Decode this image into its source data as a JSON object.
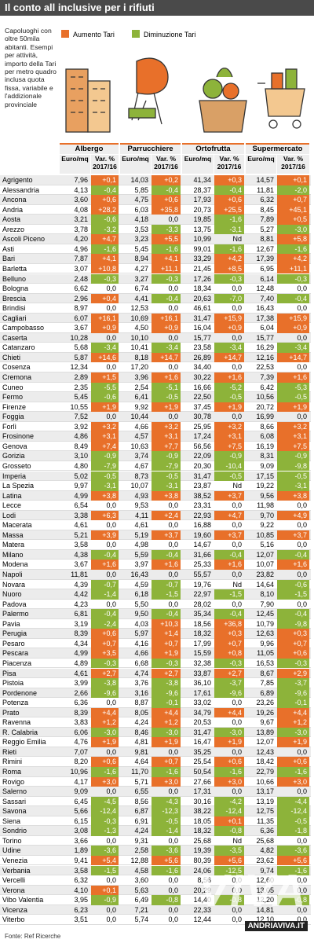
{
  "header": {
    "title": "Il conto all inclusive per i rifiuti",
    "intro": "Capoluoghi con oltre 50mila abitanti. Esempi per attività, importo della Tari per metro quadro inclusa quota fissa, variabile e l'addizionale provinciale",
    "legend": [
      "Aumento Tari",
      "Diminuzione Tari"
    ]
  },
  "table": {
    "groups": [
      "Albergo",
      "Parrucchiere",
      "Ortofrutta",
      "Supermercato"
    ],
    "subheaders": [
      "Euro/mq",
      "Var. %",
      "2017/16"
    ],
    "rows": [
      [
        "Agrigento",
        "7,96",
        "+0,1",
        "14,03",
        "+0,2",
        "41,34",
        "+0,3",
        "14,57",
        "+0,1"
      ],
      [
        "Alessandria",
        "4,13",
        "-0,4",
        "5,85",
        "-0,4",
        "28,37",
        "-0,4",
        "11,81",
        "-2,0"
      ],
      [
        "Ancona",
        "3,60",
        "+0,6",
        "4,75",
        "+0,6",
        "17,93",
        "+0,6",
        "6,32",
        "+0,7"
      ],
      [
        "Andria",
        "4,08",
        "+28,2",
        "6,03",
        "+35,8",
        "20,73",
        "+25,5",
        "8,45",
        "+45,1"
      ],
      [
        "Aosta",
        "3,21",
        "-0,6",
        "4,18",
        "0,0",
        "19,85",
        "-1,6",
        "7,89",
        "+0,5"
      ],
      [
        "Arezzo",
        "3,78",
        "-3,2",
        "3,53",
        "-3,3",
        "13,75",
        "-3,1",
        "5,27",
        "-3,0"
      ],
      [
        "Ascoli Piceno",
        "4,20",
        "+4,7",
        "3,23",
        "+5,5",
        "10,99",
        "Nd",
        "8,81",
        "+5,8"
      ],
      [
        "Asti",
        "4,96",
        "-1,6",
        "5,45",
        "-1,6",
        "99,01",
        "-1,6",
        "12,67",
        "-1,6"
      ],
      [
        "Bari",
        "7,87",
        "+4,1",
        "8,94",
        "+4,1",
        "33,29",
        "+4,2",
        "17,39",
        "+4,2"
      ],
      [
        "Barletta",
        "3,07",
        "+10,8",
        "4,27",
        "+11,1",
        "21,45",
        "+8,5",
        "6,95",
        "+11,1"
      ],
      [
        "Belluno",
        "2,48",
        "-0,3",
        "3,27",
        "-0,3",
        "17,26",
        "-0,3",
        "6,14",
        "-0,3"
      ],
      [
        "Bologna",
        "6,62",
        "0,0",
        "6,74",
        "0,0",
        "18,34",
        "0,0",
        "12,48",
        "0,0"
      ],
      [
        "Brescia",
        "2,96",
        "+0,4",
        "4,41",
        "-0,4",
        "20,63",
        "-7,0",
        "7,40",
        "-0,4"
      ],
      [
        "Brindisi",
        "8,97",
        "0,0",
        "12,53",
        "0,0",
        "46,61",
        "0,0",
        "16,43",
        "0,0"
      ],
      [
        "Cagliari",
        "6,07",
        "+16,1",
        "10,69",
        "+16,1",
        "31,47",
        "+15,9",
        "17,38",
        "+15,9"
      ],
      [
        "Campobasso",
        "3,67",
        "+0,9",
        "4,50",
        "+0,9",
        "16,04",
        "+0,9",
        "6,04",
        "+0,9"
      ],
      [
        "Caserta",
        "10,28",
        "0,0",
        "10,10",
        "0,0",
        "15,77",
        "0,0",
        "15,77",
        "0,0"
      ],
      [
        "Catanzaro",
        "5,68",
        "-3,4",
        "10,41",
        "-3,4",
        "23,58",
        "-3,4",
        "16,29",
        "-3,4"
      ],
      [
        "Chieti",
        "5,87",
        "+14,6",
        "8,18",
        "+14,7",
        "26,89",
        "+14,7",
        "12,16",
        "+14,7"
      ],
      [
        "Cosenza",
        "12,34",
        "0,0",
        "17,20",
        "0,0",
        "34,40",
        "0,0",
        "22,53",
        "0,0"
      ],
      [
        "Cremona",
        "2,89",
        "+1,5",
        "3,96",
        "+1,6",
        "30,22",
        "+1,6",
        "7,39",
        "+1,6"
      ],
      [
        "Cuneo",
        "2,35",
        "-5,5",
        "2,54",
        "-5,1",
        "16,66",
        "-5,2",
        "6,42",
        "-5,3"
      ],
      [
        "Fermo",
        "5,45",
        "-0,6",
        "6,41",
        "-0,5",
        "22,50",
        "-0,5",
        "10,56",
        "-0,5"
      ],
      [
        "Firenze",
        "10,55",
        "+1,9",
        "9,92",
        "+1,9",
        "37,45",
        "+1,9",
        "20,72",
        "+1,9"
      ],
      [
        "Foggia",
        "7,52",
        "0,0",
        "10,44",
        "0,0",
        "30,78",
        "0,0",
        "16,99",
        "0,0"
      ],
      [
        "Forlì",
        "3,92",
        "+3,2",
        "4,66",
        "+3,2",
        "25,95",
        "+3,2",
        "8,66",
        "+3,2"
      ],
      [
        "Frosinone",
        "4,86",
        "+3,1",
        "4,57",
        "+3,1",
        "17,24",
        "+3,1",
        "6,08",
        "+3,1"
      ],
      [
        "Genova",
        "8,49",
        "+7,4",
        "10,63",
        "+7,7",
        "56,56",
        "+7,5",
        "16,19",
        "+7,5"
      ],
      [
        "Gorizia",
        "3,10",
        "-0,9",
        "3,74",
        "-0,9",
        "22,09",
        "-0,9",
        "8,31",
        "-0,9"
      ],
      [
        "Grosseto",
        "4,80",
        "-7,9",
        "4,67",
        "-7,9",
        "20,30",
        "-10,4",
        "9,09",
        "-9,8"
      ],
      [
        "Imperia",
        "5,02",
        "-0,5",
        "8,73",
        "-0,5",
        "31,47",
        "-0,5",
        "17,15",
        "-0,5"
      ],
      [
        "La Spezia",
        "9,97",
        "-3,1",
        "10,07",
        "-3,1",
        "23,87",
        "Nd",
        "19,22",
        "-3,1"
      ],
      [
        "Latina",
        "4,99",
        "+3,8",
        "4,93",
        "+3,8",
        "38,52",
        "+3,7",
        "9,56",
        "+3,8"
      ],
      [
        "Lecce",
        "6,54",
        "0,0",
        "9,53",
        "0,0",
        "23,31",
        "0,0",
        "11,98",
        "0,0"
      ],
      [
        "Lodi",
        "3,38",
        "+6,3",
        "4,11",
        "+2,4",
        "22,93",
        "+4,7",
        "9,70",
        "+4,9"
      ],
      [
        "Macerata",
        "4,61",
        "0,0",
        "4,61",
        "0,0",
        "16,88",
        "0,0",
        "9,22",
        "0,0"
      ],
      [
        "Massa",
        "5,21",
        "+3,9",
        "5,19",
        "+3,7",
        "19,60",
        "+3,7",
        "10,85",
        "+3,7"
      ],
      [
        "Matera",
        "3,58",
        "0,0",
        "4,98",
        "0,0",
        "14,67",
        "0,0",
        "5,16",
        "0,0"
      ],
      [
        "Milano",
        "4,38",
        "-0,4",
        "5,59",
        "-0,4",
        "31,66",
        "-0,4",
        "12,07",
        "-0,4"
      ],
      [
        "Modena",
        "3,67",
        "+1,6",
        "3,97",
        "+1,6",
        "25,33",
        "+1,6",
        "10,07",
        "+1,6"
      ],
      [
        "Napoli",
        "11,81",
        "0,0",
        "16,43",
        "0,0",
        "55,57",
        "0,0",
        "23,82",
        "0,0"
      ],
      [
        "Novara",
        "4,39",
        "-0,7",
        "4,59",
        "-0,7",
        "19,76",
        "Nd",
        "14,64",
        "-0,6"
      ],
      [
        "Nuoro",
        "4,42",
        "-1,4",
        "6,18",
        "-1,5",
        "22,97",
        "-1,5",
        "8,10",
        "-1,5"
      ],
      [
        "Padova",
        "4,23",
        "0,0",
        "5,50",
        "0,0",
        "28,02",
        "0,0",
        "7,90",
        "0,0"
      ],
      [
        "Palermo",
        "6,81",
        "-0,4",
        "9,50",
        "-0,4",
        "35,34",
        "-0,4",
        "12,45",
        "-0,4"
      ],
      [
        "Pavia",
        "3,19",
        "-2,4",
        "4,03",
        "+10,3",
        "18,56",
        "+36,8",
        "10,79",
        "-9,8"
      ],
      [
        "Perugia",
        "8,39",
        "+0,6",
        "5,97",
        "+1,4",
        "18,32",
        "+0,3",
        "12,63",
        "+0,3"
      ],
      [
        "Pesaro",
        "4,34",
        "+0,7",
        "4,16",
        "+0,7",
        "17,99",
        "+0,7",
        "9,96",
        "+0,7"
      ],
      [
        "Pescara",
        "4,99",
        "+3,5",
        "4,66",
        "+1,9",
        "15,59",
        "+0,8",
        "11,05",
        "+0,6"
      ],
      [
        "Piacenza",
        "4,89",
        "-0,3",
        "6,68",
        "-0,3",
        "32,38",
        "-0,3",
        "16,53",
        "-0,3"
      ],
      [
        "Pisa",
        "4,61",
        "+2,7",
        "4,74",
        "+2,7",
        "33,87",
        "+2,7",
        "8,67",
        "+2,9"
      ],
      [
        "Pistoia",
        "3,99",
        "-3,8",
        "3,76",
        "-3,8",
        "36,10",
        "-3,7",
        "7,85",
        "-3,7"
      ],
      [
        "Pordenone",
        "2,66",
        "-9,6",
        "3,16",
        "-9,6",
        "17,61",
        "-9,6",
        "6,89",
        "-9,6"
      ],
      [
        "Potenza",
        "6,36",
        "0,0",
        "8,87",
        "-0,1",
        "33,02",
        "0,0",
        "23,26",
        "-0,1"
      ],
      [
        "Prato",
        "8,39",
        "+4,4",
        "8,05",
        "+4,4",
        "34,79",
        "+4,4",
        "19,26",
        "+4,4"
      ],
      [
        "Ravenna",
        "3,83",
        "+1,2",
        "4,24",
        "+1,2",
        "20,53",
        "0,0",
        "9,67",
        "+1,2"
      ],
      [
        "R. Calabria",
        "6,06",
        "-3,0",
        "8,46",
        "-3,0",
        "31,47",
        "-3,0",
        "13,89",
        "-3,0"
      ],
      [
        "Reggio Emilia",
        "4,76",
        "+1,9",
        "4,81",
        "+1,9",
        "16,47",
        "+1,9",
        "12,07",
        "+1,9"
      ],
      [
        "Rieti",
        "7,07",
        "0,0",
        "9,81",
        "0,0",
        "35,25",
        "0,0",
        "12,43",
        "0,0"
      ],
      [
        "Rimini",
        "8,20",
        "+0,6",
        "4,64",
        "+0,7",
        "25,54",
        "+0,6",
        "18,42",
        "+0,6"
      ],
      [
        "Roma",
        "10,96",
        "-1,6",
        "11,70",
        "-1,6",
        "50,54",
        "-1,6",
        "22,79",
        "-1,6"
      ],
      [
        "Rovigo",
        "4,17",
        "+3,0",
        "5,71",
        "+3,0",
        "27,66",
        "+3,0",
        "10,66",
        "+3,0"
      ],
      [
        "Salerno",
        "9,09",
        "0,0",
        "6,55",
        "0,0",
        "17,31",
        "0,0",
        "13,17",
        "0,0"
      ],
      [
        "Sassari",
        "6,45",
        "-4,5",
        "8,56",
        "-4,3",
        "30,16",
        "-4,2",
        "13,19",
        "-4,4"
      ],
      [
        "Savona",
        "5,66",
        "-12,4",
        "6,87",
        "-12,3",
        "38,22",
        "-12,4",
        "12,75",
        "-12,4"
      ],
      [
        "Siena",
        "6,15",
        "-0,3",
        "6,91",
        "-0,5",
        "18,05",
        "+0,1",
        "11,35",
        "-0,5"
      ],
      [
        "Sondrio",
        "3,08",
        "-1,3",
        "4,24",
        "-1,4",
        "18,32",
        "-0,8",
        "6,36",
        "-1,8"
      ],
      [
        "Torino",
        "3,66",
        "0,0",
        "9,31",
        "0,0",
        "25,68",
        "Nd",
        "25,68",
        "0,0"
      ],
      [
        "Udine",
        "1,89",
        "-3,6",
        "2,58",
        "-3,6",
        "19,39",
        "-3,5",
        "4,82",
        "-3,6"
      ],
      [
        "Venezia",
        "9,41",
        "+5,4",
        "12,88",
        "+5,6",
        "80,39",
        "+5,6",
        "23,62",
        "+5,6"
      ],
      [
        "Verbania",
        "3,58",
        "-1,5",
        "4,58",
        "-1,6",
        "24,06",
        "-12,5",
        "9,74",
        "-1,6"
      ],
      [
        "Vercelli",
        "6,32",
        "0,0",
        "3,60",
        "0,0",
        "8,56",
        "0,0",
        "12,60",
        "0,0"
      ],
      [
        "Verona",
        "4,10",
        "+0,1",
        "5,63",
        "0,0",
        "20,29",
        "0,0",
        "13,05",
        "0,0"
      ],
      [
        "Vibo Valentia",
        "3,95",
        "-0,9",
        "6,49",
        "-0,8",
        "14,40",
        "-0,8",
        "12,20",
        "-0,8"
      ],
      [
        "Vicenza",
        "6,23",
        "0,0",
        "7,21",
        "0,0",
        "22,33",
        "0,0",
        "14,81",
        "0,0"
      ],
      [
        "Viterbo",
        "3,51",
        "0,0",
        "5,74",
        "0,0",
        "12,44",
        "0,0",
        "12,10",
        "0,0"
      ]
    ]
  },
  "footer": {
    "source": "Fonte: Ref Ricerche"
  },
  "watermark": {
    "logo": "VIVA",
    "site": "ANDRIAVIVA.IT"
  }
}
